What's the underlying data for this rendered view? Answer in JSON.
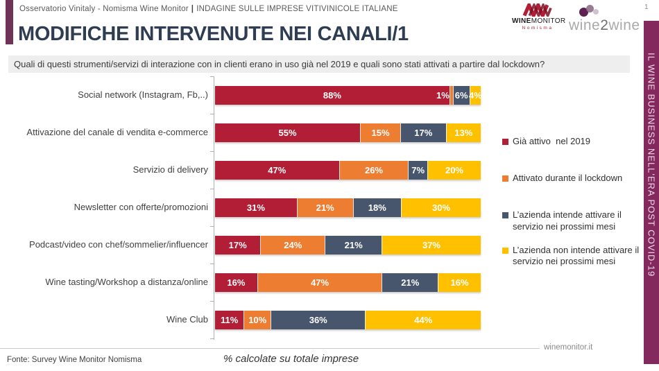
{
  "header": {
    "left": "Osservatorio Vinitaly - Nomisma Wine Monitor",
    "separator": "|",
    "right": "INDAGINE SULLE IMPRESE VITIVINICOLE ITALIANE",
    "page_number": "1"
  },
  "logos": {
    "winemonitor": {
      "word_wine": "WINE",
      "word_monitor": "MONITOR",
      "subtext": "Nomisma"
    },
    "wine2wine": {
      "pre": "wine",
      "mid": "2",
      "post": "wine"
    }
  },
  "title": "MODIFICHE INTERVENUTE NEI CANALI/1",
  "question": "Quali di questi strumenti/servizi di interazione con in clienti erano in uso già nel 2019 e quali sono stati attivati a partire dal lockdown?",
  "sidebar": {
    "text": "IL WINE BUSINESS NELL'ERA POST COVID-19",
    "bg_color": "#83295d",
    "text_color": "#f2dce9"
  },
  "colors": {
    "accent_bar": "#6e3355",
    "title": "#2e3d52",
    "question_bg": "#eeeeee"
  },
  "chart_data": {
    "type": "bar",
    "orientation": "horizontal",
    "stacked": true,
    "value_suffix": "%",
    "xlim": [
      0,
      100
    ],
    "grid": false,
    "legend_position": "right",
    "categories": [
      "Social network (Instagram, Fb,..)",
      "Attivazione del canale di vendita e-commerce",
      "Servizio di delivery",
      "Newsletter con offerte/promozioni",
      "Podcast/video con chef/sommelier/influencer",
      "Wine tasting/Workshop a distanza/online",
      "Wine Club"
    ],
    "series": [
      {
        "name": "Già attivo  nel 2019",
        "color": "#b11e35",
        "values": [
          88,
          55,
          47,
          31,
          17,
          16,
          11
        ]
      },
      {
        "name": "Attivato durante il lockdown",
        "color": "#ed7d31",
        "values": [
          1,
          15,
          26,
          21,
          24,
          47,
          10
        ]
      },
      {
        "name": "L’azienda intende attivare il servizio nei prossimi mesi",
        "color": "#47566c",
        "values": [
          6,
          17,
          7,
          18,
          21,
          21,
          36
        ]
      },
      {
        "name": "L’azienda non intende attivare il servizio nei prossimi mesi",
        "color": "#ffc000",
        "values": [
          4,
          13,
          20,
          30,
          37,
          16,
          44
        ]
      }
    ]
  },
  "footer": {
    "source": "Fonte: Survey Wine Monitor Nomisma",
    "note": "% calcolate su totale imprese",
    "site": "winemonitor.it"
  }
}
